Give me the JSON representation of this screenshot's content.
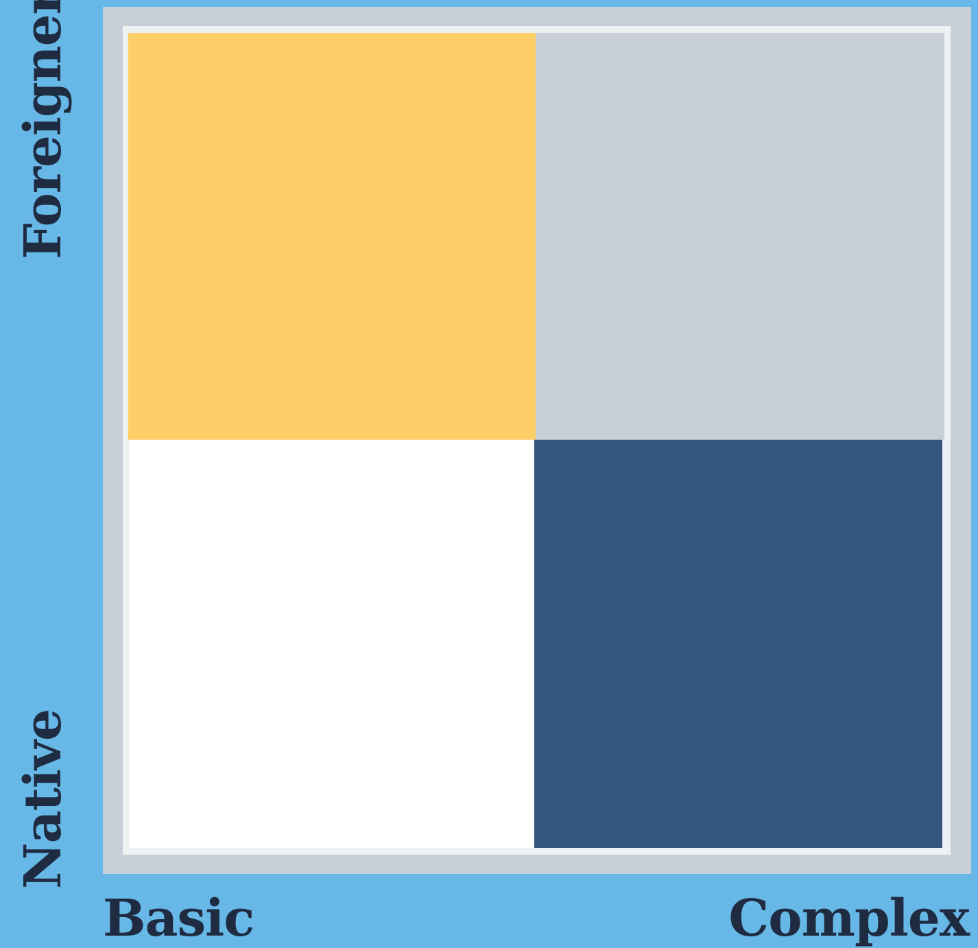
{
  "axes": {
    "y_top_label": "Foreigner",
    "y_bottom_label": "Native",
    "x_left_label": "Basic",
    "x_right_label": "Complex"
  },
  "quadrants": {
    "top_left": {
      "color": "#fecf69"
    },
    "top_right": {
      "color": "#c8cfd8"
    },
    "bottom_left": {
      "color": "#ffffff"
    },
    "bottom_right": {
      "color": "#33577d"
    }
  },
  "colors": {
    "background": "#67b7e7",
    "frame": "#c8cfd8",
    "inner_border": "#eef0f2",
    "text": "#1e2b40"
  }
}
